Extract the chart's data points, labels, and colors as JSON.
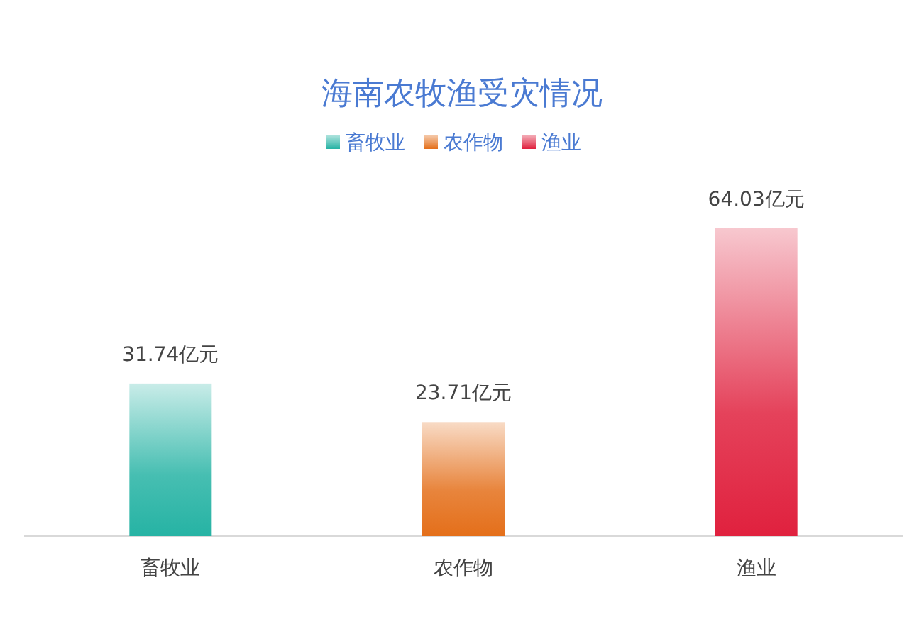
{
  "chart_data": {
    "type": "bar",
    "title": "海南农牧渔受灾情况",
    "categories": [
      "畜牧业",
      "农作物",
      "渔业"
    ],
    "series": [
      {
        "name": "畜牧业",
        "color": "#26b3a4",
        "values": [
          31.74,
          null,
          null
        ],
        "value_labels": [
          "31.74亿元",
          null,
          null
        ]
      },
      {
        "name": "农作物",
        "color": "#e46f1a",
        "values": [
          null,
          23.71,
          null
        ],
        "value_labels": [
          null,
          "23.71亿元",
          null
        ]
      },
      {
        "name": "渔业",
        "color": "#e0213e",
        "values": [
          null,
          null,
          64.03
        ],
        "value_labels": [
          null,
          null,
          "64.03亿元"
        ]
      }
    ],
    "legend": "top",
    "tick_labels": "x"
  }
}
